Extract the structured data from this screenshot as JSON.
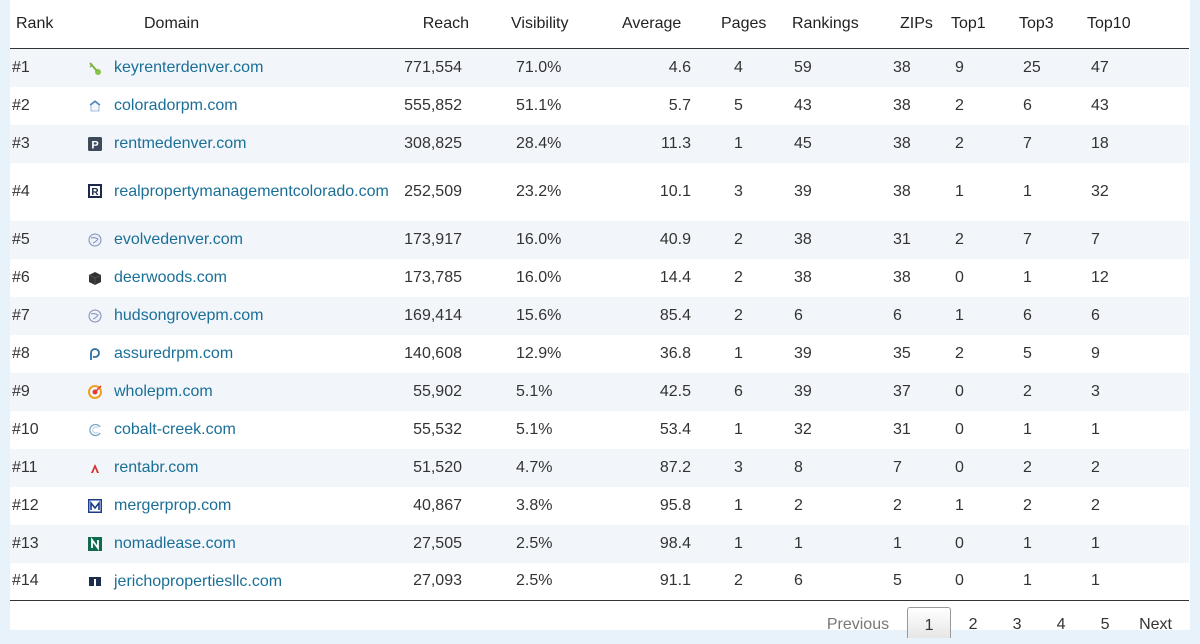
{
  "table": {
    "headers": {
      "rank": "Rank",
      "domain": "Domain",
      "reach": "Reach",
      "visibility": "Visibility",
      "average": "Average",
      "pages": "Pages",
      "rankings": "Rankings",
      "zips": "ZIPs",
      "top1": "Top1",
      "top3": "Top3",
      "top10": "Top10"
    },
    "rows": [
      {
        "rank": "#1",
        "domain": "keyrenterdenver.com",
        "icon": "key-favicon-icon",
        "reach": "771,554",
        "visibility": "71.0%",
        "average": "4.6",
        "pages": "4",
        "rankings": "59",
        "zips": "38",
        "top1": "9",
        "top3": "25",
        "top10": "47"
      },
      {
        "rank": "#2",
        "domain": "coloradorpm.com",
        "icon": "house-favicon-icon",
        "reach": "555,852",
        "visibility": "51.1%",
        "average": "5.7",
        "pages": "5",
        "rankings": "43",
        "zips": "38",
        "top1": "2",
        "top3": "6",
        "top10": "43"
      },
      {
        "rank": "#3",
        "domain": "rentmedenver.com",
        "icon": "p-square-favicon-icon",
        "reach": "308,825",
        "visibility": "28.4%",
        "average": "11.3",
        "pages": "1",
        "rankings": "45",
        "zips": "38",
        "top1": "2",
        "top3": "7",
        "top10": "18"
      },
      {
        "rank": "#4",
        "domain": "realpropertymanagementcolorado.com",
        "icon": "r-square-favicon-icon",
        "reach": "252,509",
        "visibility": "23.2%",
        "average": "10.1",
        "pages": "3",
        "rankings": "39",
        "zips": "38",
        "top1": "1",
        "top3": "1",
        "top10": "32"
      },
      {
        "rank": "#5",
        "domain": "evolvedenver.com",
        "icon": "globe-favicon-icon",
        "reach": "173,917",
        "visibility": "16.0%",
        "average": "40.9",
        "pages": "2",
        "rankings": "38",
        "zips": "31",
        "top1": "2",
        "top3": "7",
        "top10": "7"
      },
      {
        "rank": "#6",
        "domain": "deerwoods.com",
        "icon": "cube-favicon-icon",
        "reach": "173,785",
        "visibility": "16.0%",
        "average": "14.4",
        "pages": "2",
        "rankings": "38",
        "zips": "38",
        "top1": "0",
        "top3": "1",
        "top10": "12"
      },
      {
        "rank": "#7",
        "domain": "hudsongrovepm.com",
        "icon": "globe-favicon-icon",
        "reach": "169,414",
        "visibility": "15.6%",
        "average": "85.4",
        "pages": "2",
        "rankings": "6",
        "zips": "6",
        "top1": "1",
        "top3": "6",
        "top10": "6"
      },
      {
        "rank": "#8",
        "domain": "assuredrpm.com",
        "icon": "p-outline-favicon-icon",
        "reach": "140,608",
        "visibility": "12.9%",
        "average": "36.8",
        "pages": "1",
        "rankings": "39",
        "zips": "35",
        "top1": "2",
        "top3": "5",
        "top10": "9"
      },
      {
        "rank": "#9",
        "domain": "wholepm.com",
        "icon": "target-favicon-icon",
        "reach": "55,902",
        "visibility": "5.1%",
        "average": "42.5",
        "pages": "6",
        "rankings": "39",
        "zips": "37",
        "top1": "0",
        "top3": "2",
        "top10": "3"
      },
      {
        "rank": "#10",
        "domain": "cobalt-creek.com",
        "icon": "swirl-favicon-icon",
        "reach": "55,532",
        "visibility": "5.1%",
        "average": "53.4",
        "pages": "1",
        "rankings": "32",
        "zips": "31",
        "top1": "0",
        "top3": "1",
        "top10": "1"
      },
      {
        "rank": "#11",
        "domain": "rentabr.com",
        "icon": "a-logo-favicon-icon",
        "reach": "51,520",
        "visibility": "4.7%",
        "average": "87.2",
        "pages": "3",
        "rankings": "8",
        "zips": "7",
        "top1": "0",
        "top3": "2",
        "top10": "2"
      },
      {
        "rank": "#12",
        "domain": "mergerprop.com",
        "icon": "m-square-favicon-icon",
        "reach": "40,867",
        "visibility": "3.8%",
        "average": "95.8",
        "pages": "1",
        "rankings": "2",
        "zips": "2",
        "top1": "1",
        "top3": "2",
        "top10": "2"
      },
      {
        "rank": "#13",
        "domain": "nomadlease.com",
        "icon": "n-square-favicon-icon",
        "reach": "27,505",
        "visibility": "2.5%",
        "average": "98.4",
        "pages": "1",
        "rankings": "1",
        "zips": "1",
        "top1": "0",
        "top3": "1",
        "top10": "1"
      },
      {
        "rank": "#14",
        "domain": "jerichopropertiesllc.com",
        "icon": "building-favicon-icon",
        "reach": "27,093",
        "visibility": "2.5%",
        "average": "91.1",
        "pages": "2",
        "rankings": "6",
        "zips": "5",
        "top1": "0",
        "top3": "1",
        "top10": "1"
      }
    ]
  },
  "pagination": {
    "previous": "Previous",
    "pages": [
      "1",
      "2",
      "3",
      "4",
      "5"
    ],
    "current": "1",
    "next": "Next"
  },
  "colors": {
    "link": "#1a6f97",
    "page_background": "#e8f2fb",
    "row_stripe": "#f2f6fa"
  }
}
